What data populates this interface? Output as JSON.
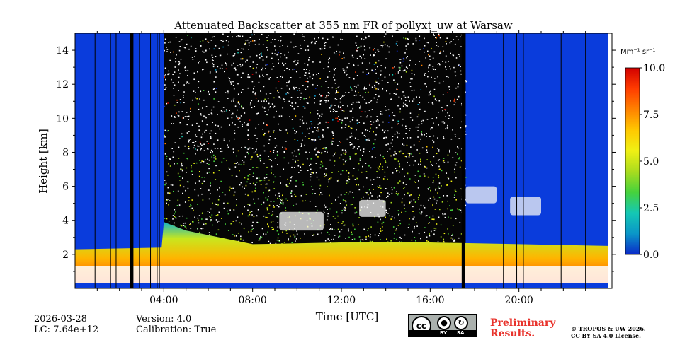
{
  "chart_data": {
    "type": "heatmap",
    "title": "Attenuated Backscatter at 355 nm FR of pollyxt_uw at Warsaw",
    "xlabel": "Time [UTC]",
    "ylabel": "Height [km]",
    "xlim": [
      0,
      24
    ],
    "ylim": [
      0,
      15
    ],
    "x_ticks": [
      4,
      8,
      12,
      16,
      20
    ],
    "x_tick_labels": [
      "04:00",
      "08:00",
      "12:00",
      "16:00",
      "20:00"
    ],
    "y_ticks": [
      2,
      4,
      6,
      8,
      10,
      12,
      14
    ],
    "y_tick_labels": [
      "2",
      "4",
      "6",
      "8",
      "10",
      "12",
      "14"
    ],
    "colorbar": {
      "label": "Mm⁻¹ sr⁻¹",
      "min": 0.0,
      "max": 10.0,
      "ticks": [
        0.0,
        2.5,
        5.0,
        7.5,
        10.0
      ],
      "tick_labels": [
        "0.0",
        "2.5",
        "5.0",
        "7.5",
        "10.0"
      ],
      "colormap": [
        "#0a28c8",
        "#0a96c8",
        "#14c8b4",
        "#46d23c",
        "#aadc1e",
        "#f0f014",
        "#ffc800",
        "#ff8200",
        "#ff3c00",
        "#d20000"
      ]
    },
    "features": {
      "boundary_layer_top_km": [
        {
          "t": 0.0,
          "h": 2.3
        },
        {
          "t": 3.9,
          "h": 2.4
        },
        {
          "t": 4.0,
          "h": 3.9
        },
        {
          "t": 5.0,
          "h": 3.4
        },
        {
          "t": 8.0,
          "h": 2.6
        },
        {
          "t": 12.0,
          "h": 2.7
        },
        {
          "t": 16.0,
          "h": 2.7
        },
        {
          "t": 20.0,
          "h": 2.6
        },
        {
          "t": 24.0,
          "h": 2.5
        }
      ],
      "saturated_layer_km": [
        0.3,
        1.3
      ],
      "cloud_patches": [
        {
          "t0": 9.2,
          "t1": 11.2,
          "h0": 3.4,
          "h1": 4.5
        },
        {
          "t0": 12.8,
          "t1": 14.0,
          "h0": 4.2,
          "h1": 5.2
        },
        {
          "t0": 17.6,
          "t1": 19.0,
          "h0": 5.0,
          "h1": 6.0
        },
        {
          "t0": 19.6,
          "t1": 21.0,
          "h0": 4.3,
          "h1": 5.4
        }
      ],
      "noisy_background_window": [
        4.0,
        17.6
      ],
      "data_gaps_thick": [
        2.55,
        17.5
      ],
      "data_gaps_thin": [
        0.9,
        1.6,
        1.85,
        2.9,
        3.4,
        3.7,
        3.8,
        19.3,
        19.9,
        20.2,
        21.9,
        23.0
      ]
    }
  },
  "footer": {
    "date": "2026-03-28",
    "lc": "LC: 7.64e+12",
    "version": "Version: 4.0",
    "calibration": "Calibration: True",
    "preliminary": [
      "Preliminary",
      "Results."
    ],
    "copyright": [
      "© TROPOS & UW 2026.",
      "CC BY SA 4.0 License."
    ],
    "badge": {
      "cc": "cc",
      "by": "BY",
      "sa": "SA"
    }
  }
}
